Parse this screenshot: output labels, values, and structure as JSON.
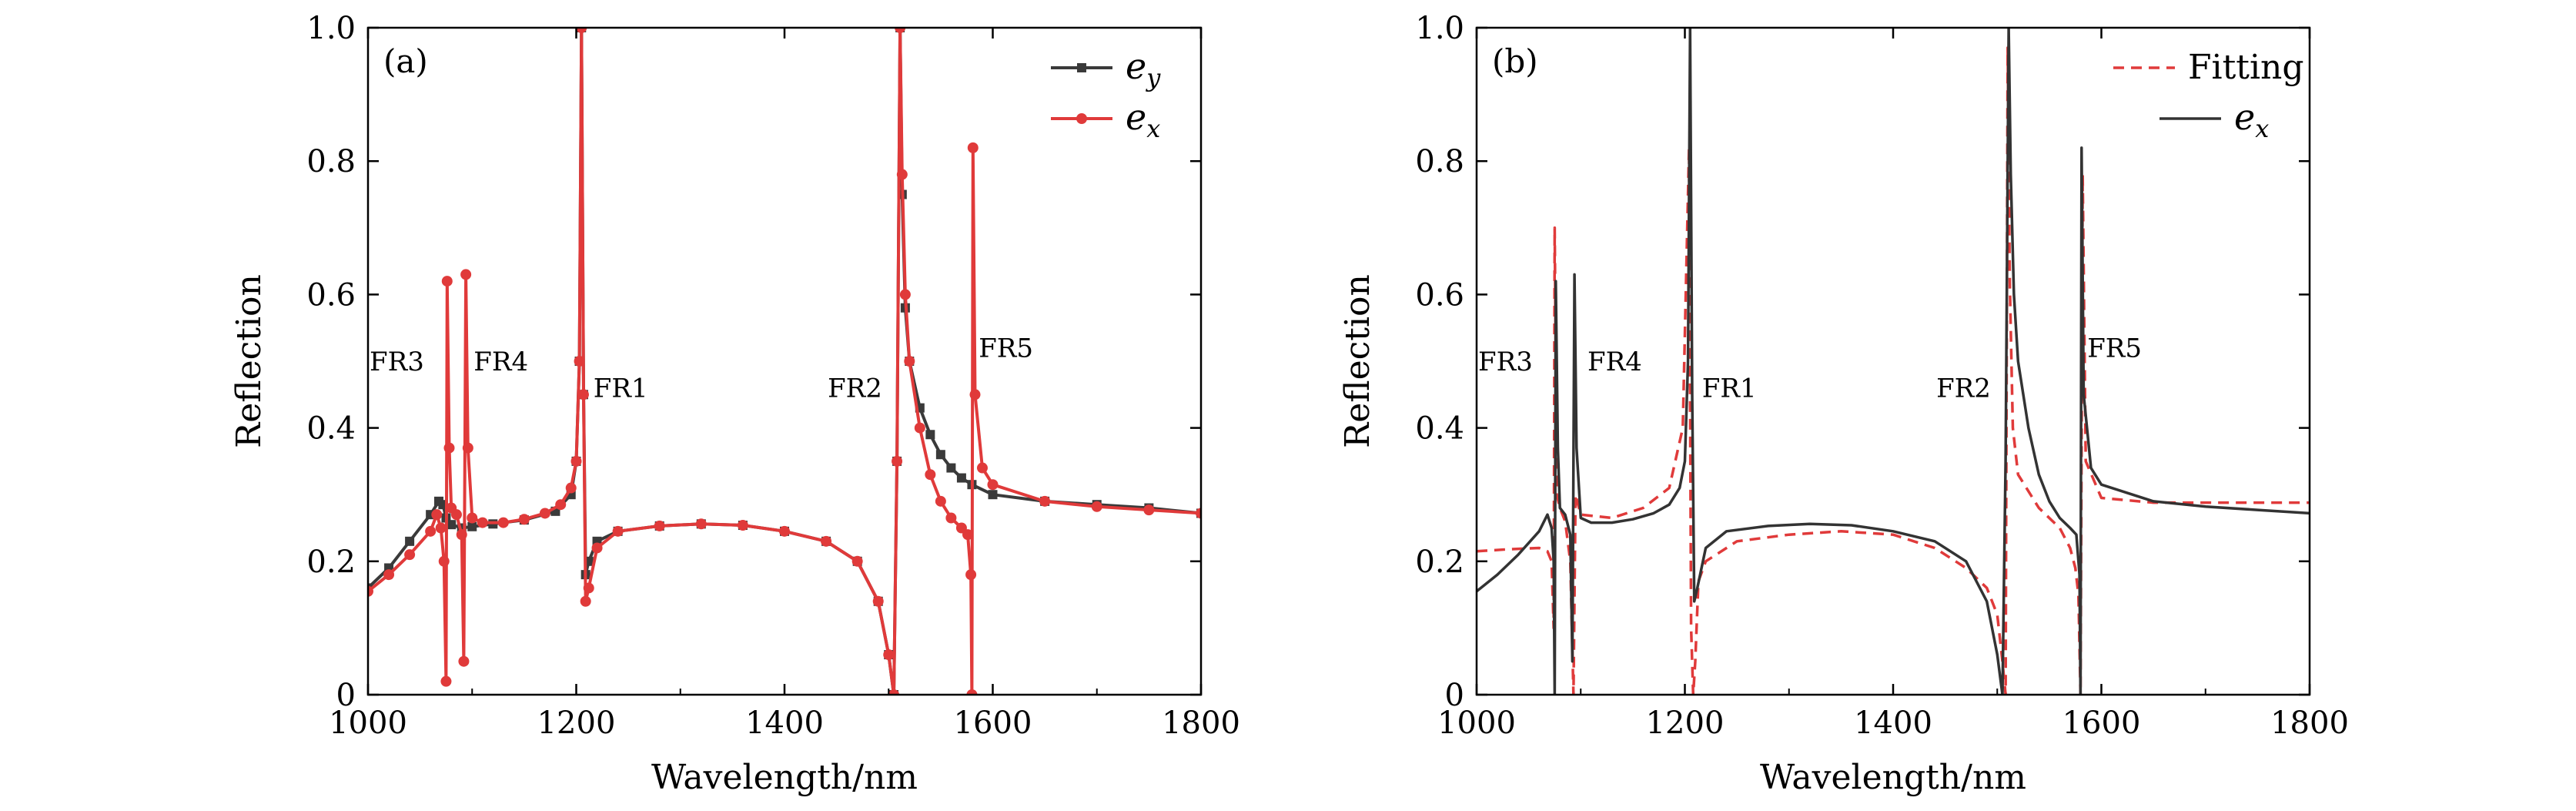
{
  "chart_data": [
    {
      "type": "line",
      "panel_label": "(a)",
      "xlabel": "Wavelength/nm",
      "ylabel": "Reflection",
      "xlim": [
        1000,
        1800
      ],
      "ylim": [
        0,
        1.0
      ],
      "xticks": [
        "1000",
        "1200",
        "1400",
        "1600",
        "1800"
      ],
      "yticks": [
        "0",
        "0.2",
        "0.4",
        "0.6",
        "0.8",
        "1.0"
      ],
      "legend_position": "top-right",
      "annotations": [
        {
          "text": "FR3",
          "x": 1000,
          "y": 0.5
        },
        {
          "text": "FR4",
          "x": 1100,
          "y": 0.5
        },
        {
          "text": "FR1",
          "x": 1215,
          "y": 0.46
        },
        {
          "text": "FR2",
          "x": 1440,
          "y": 0.46
        },
        {
          "text": "FR5",
          "x": 1585,
          "y": 0.52
        }
      ],
      "series": [
        {
          "name": "e",
          "subscript": "y",
          "color": "#3a3a3a",
          "marker": "square",
          "x": [
            1000,
            1020,
            1040,
            1060,
            1068,
            1072,
            1075,
            1080,
            1090,
            1100,
            1120,
            1150,
            1180,
            1195,
            1200,
            1203,
            1205,
            1207,
            1209,
            1212,
            1220,
            1240,
            1280,
            1320,
            1360,
            1400,
            1440,
            1470,
            1490,
            1500,
            1505,
            1508,
            1511,
            1513,
            1516,
            1520,
            1530,
            1540,
            1550,
            1560,
            1570,
            1580,
            1600,
            1650,
            1700,
            1750,
            1800
          ],
          "y": [
            0.16,
            0.19,
            0.23,
            0.27,
            0.29,
            0.285,
            0.265,
            0.255,
            0.25,
            0.252,
            0.256,
            0.262,
            0.275,
            0.3,
            0.35,
            0.5,
            1.0,
            0.45,
            0.18,
            0.2,
            0.23,
            0.245,
            0.253,
            0.256,
            0.254,
            0.245,
            0.23,
            0.2,
            0.14,
            0.06,
            0.0,
            0.35,
            1.0,
            0.75,
            0.58,
            0.5,
            0.43,
            0.39,
            0.36,
            0.34,
            0.325,
            0.315,
            0.3,
            0.29,
            0.285,
            0.28,
            0.272
          ]
        },
        {
          "name": "e",
          "subscript": "x",
          "color": "#e03a3a",
          "marker": "circle",
          "x": [
            1000,
            1020,
            1040,
            1060,
            1066,
            1070,
            1073,
            1075,
            1076,
            1078,
            1080,
            1085,
            1090,
            1092,
            1094,
            1096,
            1100,
            1110,
            1130,
            1150,
            1170,
            1185,
            1195,
            1200,
            1203,
            1205,
            1207,
            1209,
            1212,
            1220,
            1240,
            1280,
            1320,
            1360,
            1400,
            1440,
            1470,
            1490,
            1500,
            1505,
            1508,
            1511,
            1513,
            1516,
            1520,
            1530,
            1540,
            1550,
            1560,
            1570,
            1576,
            1579,
            1580,
            1581,
            1583,
            1590,
            1600,
            1650,
            1700,
            1750,
            1800
          ],
          "y": [
            0.155,
            0.18,
            0.21,
            0.245,
            0.27,
            0.25,
            0.2,
            0.02,
            0.62,
            0.37,
            0.28,
            0.27,
            0.24,
            0.05,
            0.63,
            0.37,
            0.265,
            0.258,
            0.258,
            0.263,
            0.272,
            0.285,
            0.31,
            0.35,
            0.5,
            1.0,
            0.45,
            0.14,
            0.16,
            0.22,
            0.245,
            0.253,
            0.256,
            0.254,
            0.245,
            0.23,
            0.2,
            0.14,
            0.06,
            0.0,
            0.35,
            1.0,
            0.78,
            0.6,
            0.5,
            0.4,
            0.33,
            0.29,
            0.265,
            0.25,
            0.24,
            0.18,
            0.0,
            0.82,
            0.45,
            0.34,
            0.315,
            0.29,
            0.282,
            0.277,
            0.272
          ]
        }
      ]
    },
    {
      "type": "line",
      "panel_label": "(b)",
      "xlabel": "Wavelength/nm",
      "ylabel": "Reflection",
      "xlim": [
        1000,
        1800
      ],
      "ylim": [
        0,
        1.0
      ],
      "xticks": [
        "1000",
        "1200",
        "1400",
        "1600",
        "1800"
      ],
      "yticks": [
        "0",
        "0.2",
        "0.4",
        "0.6",
        "0.8",
        "1.0"
      ],
      "legend_position": "top-right",
      "annotations": [
        {
          "text": "FR3",
          "x": 1000,
          "y": 0.5
        },
        {
          "text": "FR4",
          "x": 1105,
          "y": 0.5
        },
        {
          "text": "FR1",
          "x": 1215,
          "y": 0.46
        },
        {
          "text": "FR2",
          "x": 1440,
          "y": 0.46
        },
        {
          "text": "FR5",
          "x": 1585,
          "y": 0.52
        }
      ],
      "series": [
        {
          "name": "Fitting",
          "color": "#e03a3a",
          "style": "dashed",
          "x": [
            1000,
            1030,
            1060,
            1068,
            1072,
            1074,
            1075,
            1077,
            1080,
            1085,
            1090,
            1093,
            1095,
            1100,
            1130,
            1160,
            1185,
            1198,
            1204,
            1206,
            1208,
            1210,
            1213,
            1220,
            1250,
            1300,
            1350,
            1400,
            1440,
            1470,
            1490,
            1500,
            1505,
            1508,
            1510,
            1512,
            1515,
            1520,
            1540,
            1560,
            1570,
            1575,
            1578,
            1580,
            1582,
            1585,
            1600,
            1650,
            1700,
            1750,
            1800
          ],
          "y": [
            0.215,
            0.218,
            0.22,
            0.215,
            0.2,
            0.1,
            0.7,
            0.3,
            0.28,
            0.26,
            0.2,
            0.0,
            0.3,
            0.27,
            0.265,
            0.28,
            0.31,
            0.4,
            0.82,
            0.1,
            0.0,
            0.05,
            0.17,
            0.2,
            0.23,
            0.24,
            0.245,
            0.24,
            0.22,
            0.19,
            0.16,
            0.12,
            0.05,
            0.0,
            0.97,
            0.62,
            0.4,
            0.33,
            0.28,
            0.25,
            0.22,
            0.19,
            0.15,
            0.0,
            0.78,
            0.35,
            0.295,
            0.288,
            0.288,
            0.288,
            0.288
          ]
        },
        {
          "name": "e",
          "subscript": "x",
          "color": "#333333",
          "style": "solid",
          "x": [
            1000,
            1020,
            1040,
            1060,
            1068,
            1072,
            1074,
            1075,
            1076,
            1078,
            1080,
            1085,
            1090,
            1092,
            1094,
            1096,
            1100,
            1110,
            1130,
            1150,
            1170,
            1185,
            1195,
            1200,
            1203,
            1205,
            1207,
            1209,
            1212,
            1220,
            1240,
            1280,
            1320,
            1360,
            1400,
            1440,
            1470,
            1490,
            1500,
            1505,
            1508,
            1511,
            1513,
            1516,
            1520,
            1530,
            1540,
            1550,
            1560,
            1570,
            1576,
            1579,
            1580,
            1581,
            1583,
            1590,
            1600,
            1650,
            1700,
            1750,
            1800
          ],
          "y": [
            0.155,
            0.18,
            0.21,
            0.245,
            0.27,
            0.25,
            0.2,
            0.0,
            0.62,
            0.37,
            0.28,
            0.27,
            0.24,
            0.05,
            0.63,
            0.37,
            0.265,
            0.258,
            0.258,
            0.263,
            0.272,
            0.285,
            0.31,
            0.35,
            0.5,
            1.0,
            0.45,
            0.14,
            0.16,
            0.22,
            0.245,
            0.253,
            0.256,
            0.254,
            0.245,
            0.23,
            0.2,
            0.14,
            0.06,
            0.0,
            0.35,
            1.0,
            0.78,
            0.6,
            0.5,
            0.4,
            0.33,
            0.29,
            0.265,
            0.25,
            0.24,
            0.18,
            0.0,
            0.82,
            0.45,
            0.34,
            0.315,
            0.29,
            0.282,
            0.277,
            0.272
          ]
        }
      ]
    }
  ]
}
